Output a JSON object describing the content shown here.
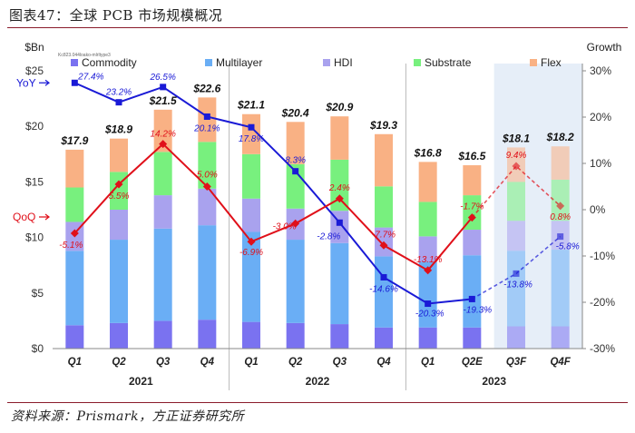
{
  "header": {
    "title": "图表47：全球 PCB 市场规模概况"
  },
  "footer": {
    "source": "资料来源：Prismark，方正证券研究所"
  },
  "colors": {
    "Commodity": "#7a72f0",
    "Multilayer": "#6aaef5",
    "HDI": "#a9a2ee",
    "Substrate": "#78f07e",
    "Flex": "#f9b184",
    "yoy": "#1a1ad6",
    "qoq": "#e0101a"
  },
  "chart_data": {
    "type": "bar",
    "stacked": true,
    "categories": [
      "Q1",
      "Q2",
      "Q3",
      "Q4",
      "Q1",
      "Q2",
      "Q3",
      "Q4",
      "Q1",
      "Q2E",
      "Q3F",
      "Q4F"
    ],
    "years": [
      {
        "label": "2021",
        "from": 0,
        "to": 3
      },
      {
        "label": "2022",
        "from": 4,
        "to": 7
      },
      {
        "label": "2023",
        "from": 8,
        "to": 11
      }
    ],
    "forecast_from": 10,
    "series": [
      {
        "name": "Commodity",
        "values": [
          2.1,
          2.3,
          2.5,
          2.6,
          2.4,
          2.3,
          2.2,
          1.9,
          1.9,
          1.9,
          2.0,
          2.0
        ]
      },
      {
        "name": "Multilayer",
        "values": [
          6.7,
          7.5,
          8.3,
          8.5,
          8.1,
          7.5,
          7.3,
          6.4,
          5.9,
          6.5,
          6.8,
          6.9
        ]
      },
      {
        "name": "HDI",
        "values": [
          2.6,
          2.7,
          3.0,
          3.3,
          3.0,
          2.8,
          2.9,
          2.6,
          2.3,
          2.3,
          2.7,
          2.6
        ]
      },
      {
        "name": "Substrate",
        "values": [
          3.1,
          3.4,
          3.9,
          4.2,
          4.0,
          4.0,
          4.6,
          3.7,
          3.1,
          3.1,
          3.5,
          3.7
        ]
      },
      {
        "name": "Flex",
        "values": [
          3.4,
          3.0,
          3.8,
          4.0,
          3.6,
          3.8,
          3.9,
          4.7,
          3.6,
          2.7,
          3.1,
          3.0
        ]
      }
    ],
    "totals": [
      "$17.9",
      "$18.9",
      "$21.5",
      "$22.6",
      "$21.1",
      "$20.4",
      "$20.9",
      "$19.3",
      "$16.8",
      "$16.5",
      "$18.1",
      "$18.2"
    ],
    "total_values": [
      17.9,
      18.9,
      21.5,
      22.6,
      21.1,
      20.4,
      20.9,
      19.3,
      16.8,
      16.5,
      18.1,
      18.2
    ],
    "yoy": {
      "name": "YoY",
      "values": [
        27.4,
        23.2,
        26.5,
        20.1,
        17.8,
        8.3,
        -2.8,
        -14.6,
        -20.3,
        -19.3,
        -13.8,
        -5.8
      ],
      "labels": [
        "27.4%",
        "23.2%",
        "26.5%",
        "20.1%",
        "17.8%",
        "8.3%",
        "-2.8%",
        "-14.6%",
        "-20.3%",
        "-19.3%",
        "-13.8%",
        "-5.8%"
      ]
    },
    "qoq": {
      "name": "QoQ",
      "values": [
        -5.1,
        5.5,
        14.2,
        5.0,
        -6.9,
        -3.0,
        2.4,
        -7.7,
        -13.1,
        -1.7,
        9.4,
        0.8
      ],
      "labels": [
        "-5.1%",
        "5.5%",
        "14.2%",
        "5.0%",
        "-6.9%",
        "-3.0%",
        "2.4%",
        "-7.7%",
        "-13.1%",
        "-1.7%",
        "9.4%",
        "0.8%"
      ]
    },
    "left_axis": {
      "title": "$Bn",
      "min": 0,
      "max": 25,
      "ticks": [
        "$0",
        "$5",
        "$10",
        "$15",
        "$20",
        "$25"
      ]
    },
    "right_axis": {
      "title": "Growth",
      "min": -30,
      "max": 30,
      "ticks": [
        "-30%",
        "-20%",
        "-10%",
        "0%",
        "10%",
        "20%",
        "30%"
      ]
    },
    "legend": [
      "Commodity",
      "Multilayer",
      "HDI",
      "Substrate",
      "Flex"
    ],
    "note": "Kc823.044loako-mlrltype3"
  }
}
